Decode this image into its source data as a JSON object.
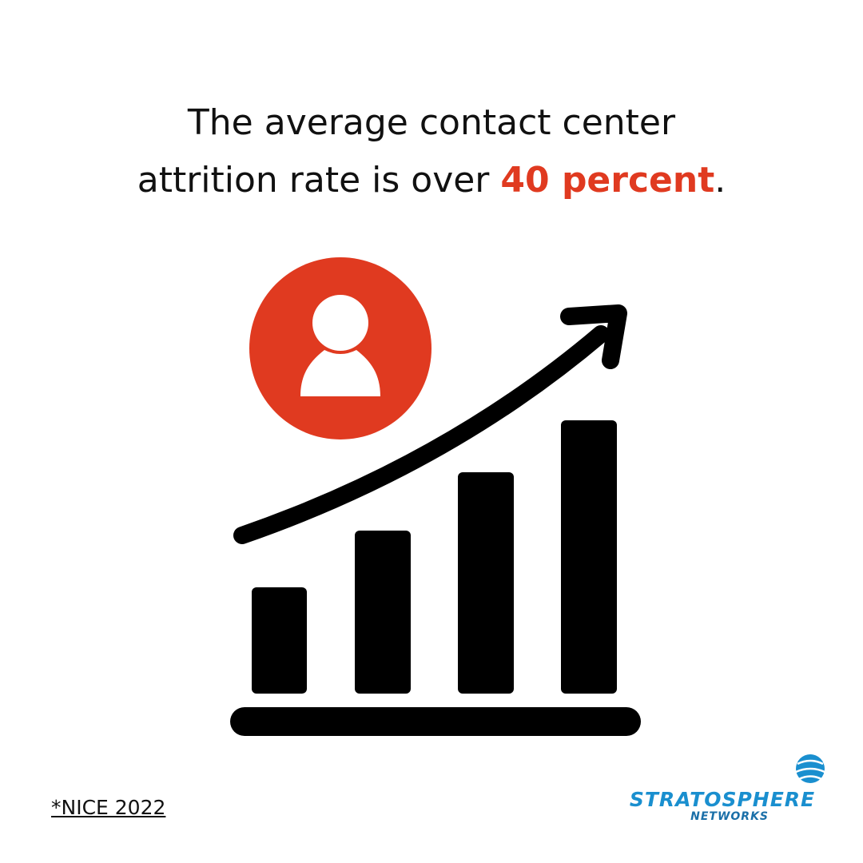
{
  "headline": {
    "line1": "The average contact center",
    "line2": "attrition rate is over ",
    "highlight": "40 percent",
    "end": "."
  },
  "source": "*NICE 2022",
  "logo": {
    "name": "STRATOSPHERE",
    "sub": "NETWORKS"
  }
}
